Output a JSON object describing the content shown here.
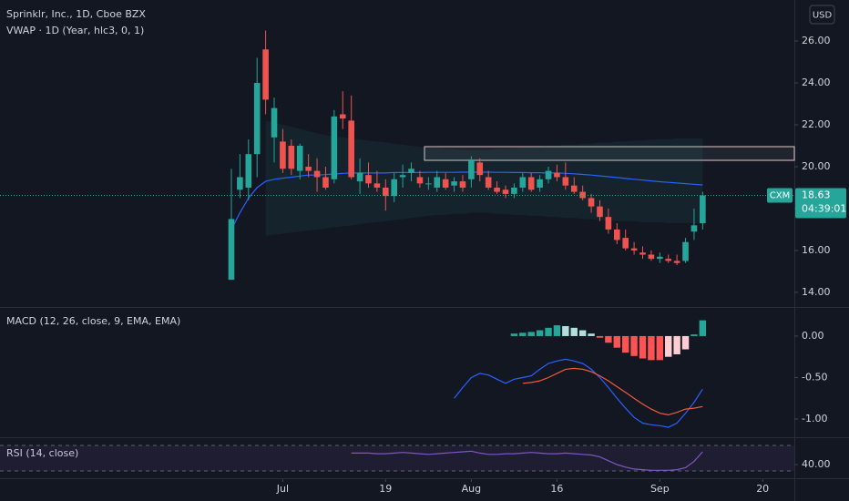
{
  "chart_data": [
    {
      "type": "candlestick",
      "title": "Sprinklr, Inc., 1D, Cboe BZX",
      "subtitle": "VWAP · 1D (Year, hlc3, 0, 1)",
      "currency": "USD",
      "symbol": "CXM",
      "last_price": 18.63,
      "countdown": "04:39:01",
      "up_color": "#26a69a",
      "down_color": "#ef5350",
      "open": [
        14.6,
        18.9,
        19.0,
        20.6,
        25.6,
        21.4,
        21.2,
        21.0,
        19.8,
        20.0,
        19.8,
        19.5,
        19.4,
        22.5,
        22.2,
        19.3,
        19.6,
        19.2,
        19.0,
        18.6,
        19.5,
        19.7,
        19.5,
        19.2,
        19.0,
        19.4,
        19.1,
        19.3,
        19.4,
        20.2,
        19.5,
        19.0,
        18.9,
        18.7,
        19.0,
        19.5,
        19.0,
        19.4,
        19.7,
        19.5,
        19.1,
        18.8,
        18.5,
        18.1,
        17.6,
        17.0,
        16.6,
        16.1,
        15.9,
        15.8,
        15.6,
        15.6,
        15.5,
        15.5,
        16.9,
        17.3
      ],
      "high": [
        19.9,
        20.6,
        21.3,
        25.2,
        26.5,
        23.3,
        21.8,
        21.3,
        21.1,
        20.6,
        20.4,
        20.0,
        22.7,
        23.6,
        23.4,
        20.4,
        20.2,
        19.8,
        19.4,
        19.7,
        20.1,
        20.2,
        19.8,
        19.5,
        19.8,
        19.7,
        19.5,
        19.6,
        20.5,
        20.4,
        19.8,
        19.3,
        19.1,
        19.2,
        19.7,
        19.7,
        19.6,
        20.0,
        20.1,
        20.2,
        19.5,
        19.1,
        18.7,
        18.4,
        18.0,
        17.3,
        17.0,
        16.4,
        16.2,
        16.0,
        15.9,
        15.8,
        15.8,
        16.6,
        18.0,
        18.8
      ],
      "low": [
        14.6,
        18.5,
        18.4,
        19.5,
        22.5,
        20.2,
        19.7,
        19.6,
        19.4,
        19.5,
        18.8,
        18.9,
        19.2,
        21.8,
        19.4,
        18.7,
        19.0,
        18.8,
        17.9,
        18.3,
        19.0,
        19.3,
        19.0,
        18.9,
        18.8,
        18.9,
        18.8,
        18.8,
        19.0,
        19.3,
        18.9,
        18.7,
        18.5,
        18.5,
        18.8,
        18.8,
        18.8,
        19.2,
        19.3,
        18.9,
        18.7,
        18.4,
        17.8,
        17.4,
        16.8,
        16.3,
        16.0,
        15.8,
        15.6,
        15.5,
        15.4,
        15.4,
        15.3,
        15.4,
        16.5,
        17.0
      ],
      "close": [
        17.5,
        19.5,
        20.6,
        24.0,
        23.2,
        22.8,
        19.9,
        19.9,
        21.0,
        19.8,
        19.5,
        19.0,
        22.4,
        22.3,
        19.5,
        19.7,
        19.2,
        19.0,
        18.6,
        19.4,
        19.6,
        19.9,
        19.2,
        19.2,
        19.5,
        19.0,
        19.3,
        19.0,
        20.3,
        19.6,
        19.0,
        18.8,
        18.7,
        19.0,
        19.5,
        18.9,
        19.4,
        19.8,
        19.5,
        19.1,
        18.8,
        18.5,
        18.1,
        17.6,
        17.0,
        16.5,
        16.1,
        16.0,
        15.8,
        15.6,
        15.7,
        15.5,
        15.4,
        16.4,
        17.2,
        18.63
      ],
      "vwap": {
        "color": "#2962ff",
        "band_color": "#26a69a",
        "values": [
          17.0,
          17.8,
          18.5,
          19.0,
          19.3,
          19.4,
          19.45,
          19.5,
          19.55,
          19.6,
          19.6,
          19.62,
          19.65,
          19.68,
          19.7,
          19.7,
          19.7,
          19.7,
          19.7,
          19.72,
          19.72,
          19.72,
          19.72,
          19.73,
          19.73,
          19.73,
          19.73,
          19.74,
          19.74,
          19.74,
          19.74,
          19.73,
          19.73,
          19.72,
          19.72,
          19.71,
          19.71,
          19.7,
          19.7,
          19.68,
          19.66,
          19.63,
          19.6,
          19.56,
          19.52,
          19.48,
          19.44,
          19.4,
          19.36,
          19.32,
          19.28,
          19.25,
          19.22,
          19.19,
          19.16,
          19.13
        ],
        "upper": [
          null,
          null,
          null,
          null,
          22.2,
          22.1,
          22.0,
          21.9,
          21.8,
          21.7,
          21.6,
          21.5,
          21.45,
          21.4,
          21.35,
          21.3,
          21.25,
          21.2,
          21.15,
          21.1,
          21.05,
          21.0,
          20.95,
          20.9,
          20.9,
          20.85,
          20.85,
          20.8,
          20.8,
          20.8,
          20.8,
          20.85,
          20.85,
          20.9,
          20.9,
          20.95,
          20.95,
          21.0,
          21.0,
          21.05,
          21.05,
          21.1,
          21.1,
          21.15,
          21.15,
          21.2,
          21.2,
          21.25,
          21.25,
          21.3,
          21.3,
          21.3,
          21.35,
          21.35,
          21.35,
          21.35
        ],
        "lower": [
          null,
          null,
          null,
          null,
          16.7,
          16.75,
          16.8,
          16.85,
          16.9,
          16.95,
          17.0,
          17.05,
          17.1,
          17.15,
          17.2,
          17.25,
          17.3,
          17.35,
          17.4,
          17.45,
          17.5,
          17.55,
          17.6,
          17.65,
          17.7,
          17.7,
          17.75,
          17.75,
          17.8,
          17.8,
          17.8,
          17.75,
          17.75,
          17.7,
          17.7,
          17.65,
          17.65,
          17.6,
          17.6,
          17.55,
          17.55,
          17.5,
          17.5,
          17.45,
          17.45,
          17.4,
          17.4,
          17.4,
          17.35,
          17.35,
          17.35,
          17.3,
          17.3,
          17.3,
          17.3,
          17.3
        ]
      },
      "xlim": [
        -27,
        65.7
      ],
      "ylim": [
        13.3,
        27.96
      ],
      "yticks": [
        {
          "value": 14,
          "label": "14.00"
        },
        {
          "value": 16,
          "label": "16.00"
        },
        {
          "value": 18,
          "label": "18.00"
        },
        {
          "value": 20,
          "label": "20.00"
        },
        {
          "value": 22,
          "label": "22.00"
        },
        {
          "value": 24,
          "label": "24.00"
        },
        {
          "value": 26,
          "label": "26.00"
        }
      ]
    },
    {
      "type": "macd",
      "title": "MACD (12, 26, close, 9, EMA, EMA)",
      "histogram": [
        null,
        null,
        null,
        null,
        null,
        null,
        null,
        null,
        null,
        null,
        null,
        null,
        null,
        null,
        null,
        null,
        null,
        null,
        null,
        null,
        null,
        null,
        null,
        null,
        null,
        null,
        null,
        null,
        null,
        null,
        null,
        null,
        null,
        0.03,
        0.04,
        0.05,
        0.07,
        0.1,
        0.13,
        0.12,
        0.1,
        0.07,
        0.03,
        -0.02,
        -0.08,
        -0.14,
        -0.2,
        -0.24,
        -0.27,
        -0.29,
        -0.29,
        -0.25,
        -0.22,
        -0.16,
        0.02,
        0.19
      ],
      "histogram_colors": [
        "#26a69a",
        "#b2dfdb",
        "#ff5252",
        "#ffcdd2"
      ],
      "series": [
        {
          "name": "MACD",
          "color": "#2962ff",
          "values": [
            null,
            null,
            null,
            null,
            null,
            null,
            null,
            null,
            null,
            null,
            null,
            null,
            null,
            null,
            null,
            null,
            null,
            null,
            null,
            null,
            null,
            null,
            null,
            null,
            null,
            null,
            -0.75,
            -0.62,
            -0.5,
            -0.45,
            -0.47,
            -0.52,
            -0.57,
            -0.52,
            -0.5,
            -0.48,
            -0.4,
            -0.33,
            -0.3,
            -0.28,
            -0.3,
            -0.33,
            -0.4,
            -0.5,
            -0.62,
            -0.75,
            -0.87,
            -0.98,
            -1.05,
            -1.07,
            -1.08,
            -1.1,
            -1.05,
            -0.93,
            -0.8,
            -0.64
          ]
        },
        {
          "name": "Signal",
          "color": "#f05a3c",
          "values": [
            null,
            null,
            null,
            null,
            null,
            null,
            null,
            null,
            null,
            null,
            null,
            null,
            null,
            null,
            null,
            null,
            null,
            null,
            null,
            null,
            null,
            null,
            null,
            null,
            null,
            null,
            null,
            null,
            null,
            null,
            null,
            null,
            null,
            null,
            -0.57,
            -0.56,
            -0.54,
            -0.5,
            -0.45,
            -0.4,
            -0.39,
            -0.4,
            -0.43,
            -0.48,
            -0.54,
            -0.61,
            -0.68,
            -0.75,
            -0.82,
            -0.88,
            -0.93,
            -0.95,
            -0.92,
            -0.88,
            -0.87,
            -0.85
          ]
        }
      ],
      "ylim": [
        -1.22,
        0.34
      ],
      "yticks": [
        {
          "value": -1,
          "label": "-1.00"
        },
        {
          "value": -0.5,
          "label": "-0.50"
        },
        {
          "value": 0,
          "label": "0.00"
        }
      ]
    },
    {
      "type": "rsi",
      "title": "RSI (14, close)",
      "color": "#7e57c2",
      "values": [
        null,
        null,
        null,
        null,
        null,
        null,
        null,
        null,
        null,
        null,
        null,
        null,
        null,
        null,
        58,
        58,
        58,
        57,
        57,
        58,
        59,
        58,
        57,
        56,
        57,
        58,
        59,
        60,
        61,
        58,
        56,
        56,
        57,
        57,
        58,
        59,
        58,
        57,
        57,
        58,
        57,
        56,
        55,
        52,
        46,
        40,
        36,
        33,
        32,
        31,
        31,
        31,
        32,
        35,
        45,
        60
      ],
      "bands": [
        70,
        30
      ],
      "ylim": [
        18.6,
        81.4
      ],
      "yticks": [
        {
          "value": 40,
          "label": "40.00"
        }
      ],
      "xticks": [
        {
          "value": 6,
          "label": "Jul"
        },
        {
          "value": 18,
          "label": "19"
        },
        {
          "value": 28,
          "label": "Aug"
        },
        {
          "value": 38,
          "label": "16"
        },
        {
          "value": 50,
          "label": "Sep"
        },
        {
          "value": 62,
          "label": "20"
        }
      ]
    }
  ]
}
